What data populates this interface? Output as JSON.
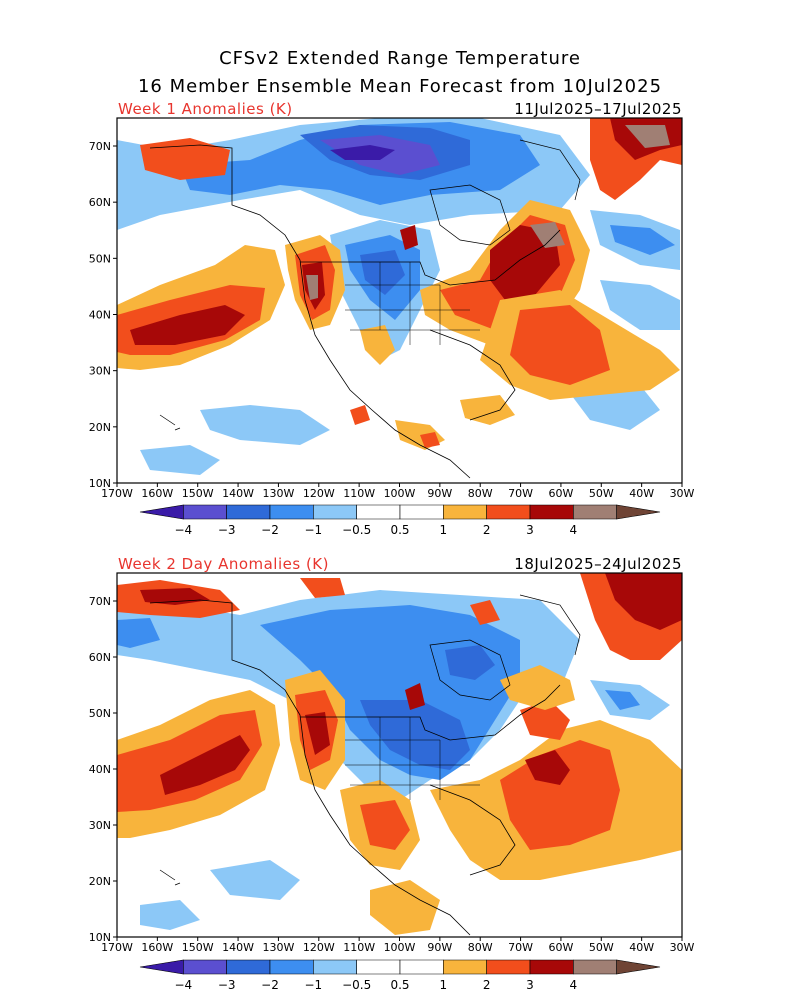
{
  "title_line1": "CFSv2 Extended Range Temperature",
  "title_line2": "16 Member Ensemble Mean Forecast from 10Jul2025",
  "panels": [
    {
      "label": "Week 1 Anomalies (K)",
      "dates": "11Jul2025–17Jul2025"
    },
    {
      "label": "Week 2 Day Anomalies (K)",
      "dates": "18Jul2025–24Jul2025"
    }
  ],
  "lat_labels": [
    "70N",
    "60N",
    "50N",
    "40N",
    "30N",
    "20N",
    "10N"
  ],
  "lon_labels": [
    "170W",
    "160W",
    "150W",
    "140W",
    "130W",
    "120W",
    "110W",
    "100W",
    "90W",
    "80W",
    "70W",
    "60W",
    "50W",
    "40W",
    "30W"
  ],
  "colorbar": {
    "colors": [
      "#3a1ba8",
      "#5b4fd0",
      "#2f6ad8",
      "#3d8ef0",
      "#8cc8f7",
      "#ffffff",
      "#ffffff",
      "#f8b43c",
      "#f24e1c",
      "#a70808",
      "#a07f74",
      "#6f4435"
    ],
    "labels": [
      "−4",
      "−3",
      "−2",
      "−1",
      "−0.5",
      "0.5",
      "1",
      "2",
      "3",
      "4"
    ]
  },
  "legend_colors": {
    "strong_cold": "#3a1ba8",
    "cold": "#5b4fd0",
    "cool3": "#2f6ad8",
    "cool2": "#3d8ef0",
    "cool1": "#8cc8f7",
    "warm1": "#f8b43c",
    "warm2": "#f24e1c",
    "warm3": "#a70808",
    "warm4": "#a07f74"
  }
}
